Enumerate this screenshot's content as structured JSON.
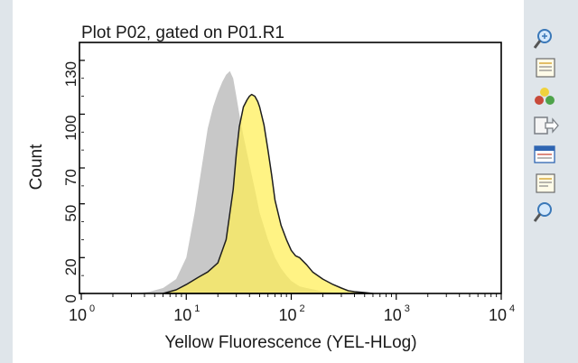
{
  "chart_data": {
    "type": "area",
    "title": "Plot P02, gated on P01.R1",
    "xlabel": "Yellow Fluorescence (YEL-HLog)",
    "ylabel": "Count",
    "xscale": "log",
    "xlim": [
      1,
      10000
    ],
    "ylim": [
      0,
      140
    ],
    "x_ticks": [
      {
        "value": 1,
        "base": "10",
        "exp": "0"
      },
      {
        "value": 10,
        "base": "10",
        "exp": "1"
      },
      {
        "value": 100,
        "base": "10",
        "exp": "2"
      },
      {
        "value": 1000,
        "base": "10",
        "exp": "3"
      },
      {
        "value": 10000,
        "base": "10",
        "exp": "4"
      }
    ],
    "y_ticks": [
      0,
      20,
      50,
      70,
      100,
      130
    ],
    "y_tick_labels": [
      "0",
      "20",
      "50",
      "70",
      "100",
      "130"
    ],
    "grid": false,
    "series": [
      {
        "color": "#c8c8c8",
        "x": [
          3.2,
          4.5,
          6,
          8,
          10,
          12,
          14,
          16,
          18,
          20,
          22,
          24,
          26,
          28,
          30,
          32,
          35,
          40,
          45,
          50,
          60,
          70,
          80,
          90,
          100,
          120,
          140,
          170,
          200,
          250,
          300
        ],
        "y": [
          0,
          1,
          3,
          8,
          20,
          45,
          70,
          92,
          104,
          112,
          118,
          122,
          124,
          120,
          110,
          100,
          88,
          72,
          58,
          45,
          30,
          20,
          14,
          10,
          7,
          4,
          3,
          2,
          1,
          0.5,
          0
        ]
      },
      {
        "color": "#ffee55",
        "x": [
          6,
          8,
          10,
          13,
          16,
          20,
          24,
          28,
          30,
          32,
          35,
          38,
          40,
          42,
          45,
          48,
          50,
          55,
          60,
          65,
          70,
          80,
          90,
          100,
          110,
          120,
          140,
          160,
          200,
          250,
          300,
          350,
          400,
          500,
          600
        ],
        "y": [
          0,
          2,
          5,
          9,
          12,
          17,
          30,
          58,
          78,
          93,
          104,
          108,
          110,
          111,
          110,
          107,
          104,
          94,
          80,
          66,
          52,
          38,
          30,
          24,
          21,
          20,
          16,
          12,
          8,
          5,
          3,
          1.5,
          1,
          0.5,
          0
        ]
      }
    ]
  },
  "toolbar": {
    "icons": [
      {
        "name": "zoom-in-icon",
        "color": "#3a78b8"
      },
      {
        "name": "properties-icon",
        "color": "#d9a93a"
      },
      {
        "name": "color-palette-icon",
        "color": "#c84a3a"
      },
      {
        "name": "export-icon",
        "color": "#7a7f85"
      },
      {
        "name": "statistics-icon",
        "color": "#2f65b2"
      },
      {
        "name": "notes-icon",
        "color": "#d9a93a"
      },
      {
        "name": "zoom-out-icon",
        "color": "#3a78b8"
      }
    ]
  }
}
